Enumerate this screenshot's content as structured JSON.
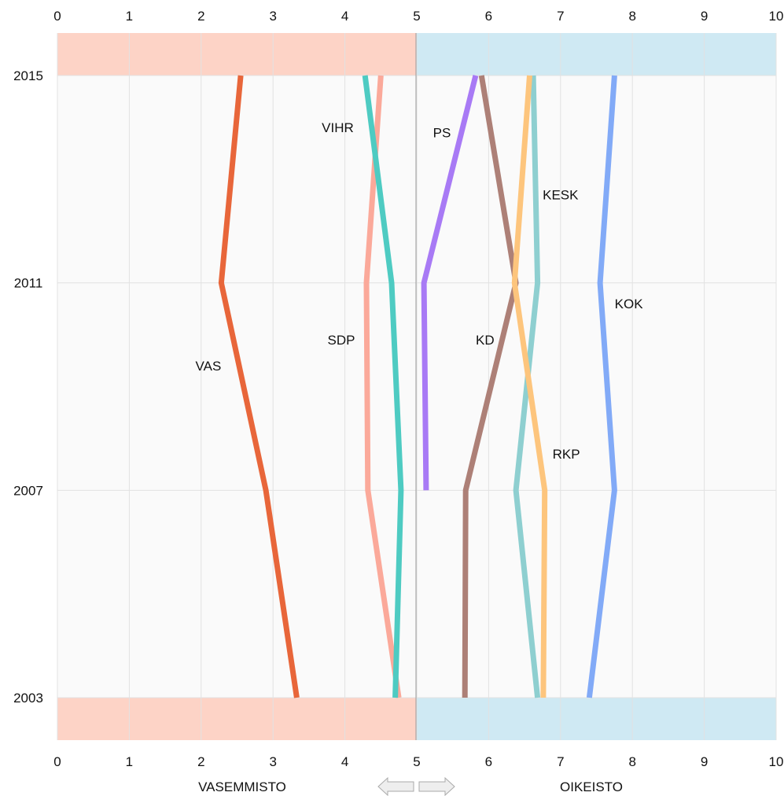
{
  "chart_data": {
    "type": "line",
    "x_axis": {
      "ticks": [
        "0",
        "1",
        "2",
        "3",
        "4",
        "5",
        "6",
        "7",
        "8",
        "9",
        "10"
      ],
      "xlim": [
        0,
        10
      ]
    },
    "y_axis": {
      "ticks": [
        "2015",
        "2011",
        "2007",
        "2003"
      ],
      "years": [
        2015,
        2011,
        2007,
        2003
      ]
    },
    "bottom_labels": {
      "left": "VASEMMISTO",
      "right": "OIKEISTO"
    },
    "colors": {
      "left_band": "#fdd3c6",
      "right_band": "#cfe9f3",
      "plot_bg": "#fafafa",
      "arrow_fill": "#eeeeee",
      "arrow_stroke": "#aaaaaa"
    },
    "series": [
      {
        "name": "VAS",
        "color": "#e8663a",
        "points": [
          [
            2015,
            2.55
          ],
          [
            2011,
            2.28
          ],
          [
            2007,
            2.9
          ],
          [
            2003,
            3.33
          ]
        ]
      },
      {
        "name": "SDP",
        "color": "#fba99a",
        "points": [
          [
            2015,
            4.5
          ],
          [
            2011,
            4.3
          ],
          [
            2007,
            4.32
          ],
          [
            2003,
            4.75
          ]
        ]
      },
      {
        "name": "VIHR",
        "color": "#4ecbc2",
        "points": [
          [
            2015,
            4.28
          ],
          [
            2011,
            4.65
          ],
          [
            2007,
            4.78
          ],
          [
            2003,
            4.7
          ]
        ]
      },
      {
        "name": "PS",
        "color": "#a87af5",
        "points": [
          [
            2015,
            5.82
          ],
          [
            2011,
            5.1
          ],
          [
            2007,
            5.13
          ]
        ]
      },
      {
        "name": "KD",
        "color": "#ad8077",
        "points": [
          [
            2015,
            5.9
          ],
          [
            2011,
            6.38
          ],
          [
            2007,
            5.68
          ],
          [
            2003,
            5.67
          ]
        ]
      },
      {
        "name": "KESK",
        "color": "#8ecfd0",
        "points": [
          [
            2015,
            6.62
          ],
          [
            2011,
            6.68
          ],
          [
            2007,
            6.38
          ],
          [
            2003,
            6.68
          ]
        ]
      },
      {
        "name": "RKP",
        "color": "#fdc57d",
        "points": [
          [
            2015,
            6.57
          ],
          [
            2011,
            6.36
          ],
          [
            2007,
            6.78
          ],
          [
            2003,
            6.76
          ]
        ]
      },
      {
        "name": "KOK",
        "color": "#82aaf7",
        "points": [
          [
            2015,
            7.75
          ],
          [
            2011,
            7.55
          ],
          [
            2007,
            7.75
          ],
          [
            2003,
            7.4
          ]
        ]
      }
    ],
    "labels": [
      {
        "name": "VIHR",
        "x": 3.9,
        "year": 2014.0
      },
      {
        "name": "PS",
        "x": 5.35,
        "year": 2013.9
      },
      {
        "name": "KESK",
        "x": 7.0,
        "year": 2012.7
      },
      {
        "name": "KOK",
        "x": 7.95,
        "year": 2010.6
      },
      {
        "name": "SDP",
        "x": 3.95,
        "year": 2009.9
      },
      {
        "name": "KD",
        "x": 5.95,
        "year": 2009.9
      },
      {
        "name": "VAS",
        "x": 2.1,
        "year": 2009.4
      },
      {
        "name": "RKP",
        "x": 7.08,
        "year": 2007.7
      }
    ]
  }
}
